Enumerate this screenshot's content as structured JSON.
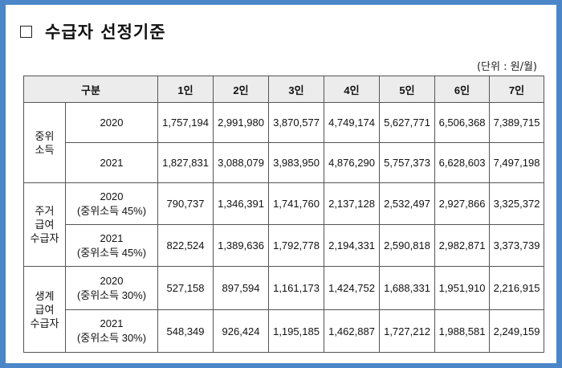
{
  "title": "수급자 선정기준",
  "unit": "(단위 : 원/월)",
  "table": {
    "header": [
      "구분",
      "1인",
      "2인",
      "3인",
      "4인",
      "5인",
      "6인",
      "7인"
    ],
    "groups": [
      {
        "category": [
          "중위",
          "소득"
        ],
        "rows": [
          {
            "label": [
              "2020"
            ],
            "values": [
              "1,757,194",
              "2,991,980",
              "3,870,577",
              "4,749,174",
              "5,627,771",
              "6,506,368",
              "7,389,715"
            ]
          },
          {
            "label": [
              "2021"
            ],
            "values": [
              "1,827,831",
              "3,088,079",
              "3,983,950",
              "4,876,290",
              "5,757,373",
              "6,628,603",
              "7,497,198"
            ]
          }
        ]
      },
      {
        "category": [
          "주거",
          "급여",
          "수급자"
        ],
        "rows": [
          {
            "label": [
              "2020",
              "(중위소득 45%)"
            ],
            "values": [
              "790,737",
              "1,346,391",
              "1,741,760",
              "2,137,128",
              "2,532,497",
              "2,927,866",
              "3,325,372"
            ]
          },
          {
            "label": [
              "2021",
              "(중위소득 45%)"
            ],
            "values": [
              "822,524",
              "1,389,636",
              "1,792,778",
              "2,194,331",
              "2,590,818",
              "2,982,871",
              "3,373,739"
            ]
          }
        ]
      },
      {
        "category": [
          "생계",
          "급여",
          "수급자"
        ],
        "rows": [
          {
            "label": [
              "2020",
              "(중위소득 30%)"
            ],
            "values": [
              "527,158",
              "897,594",
              "1,161,173",
              "1,424,752",
              "1,688,331",
              "1,951,910",
              "2,216,915"
            ]
          },
          {
            "label": [
              "2021",
              "(중위소득 30%)"
            ],
            "values": [
              "548,349",
              "926,424",
              "1,195,185",
              "1,462,887",
              "1,727,212",
              "1,988,581",
              "2,249,159"
            ]
          }
        ]
      }
    ]
  },
  "colors": {
    "frame_border": "#4a86c8",
    "header_bg": "#ececec"
  }
}
